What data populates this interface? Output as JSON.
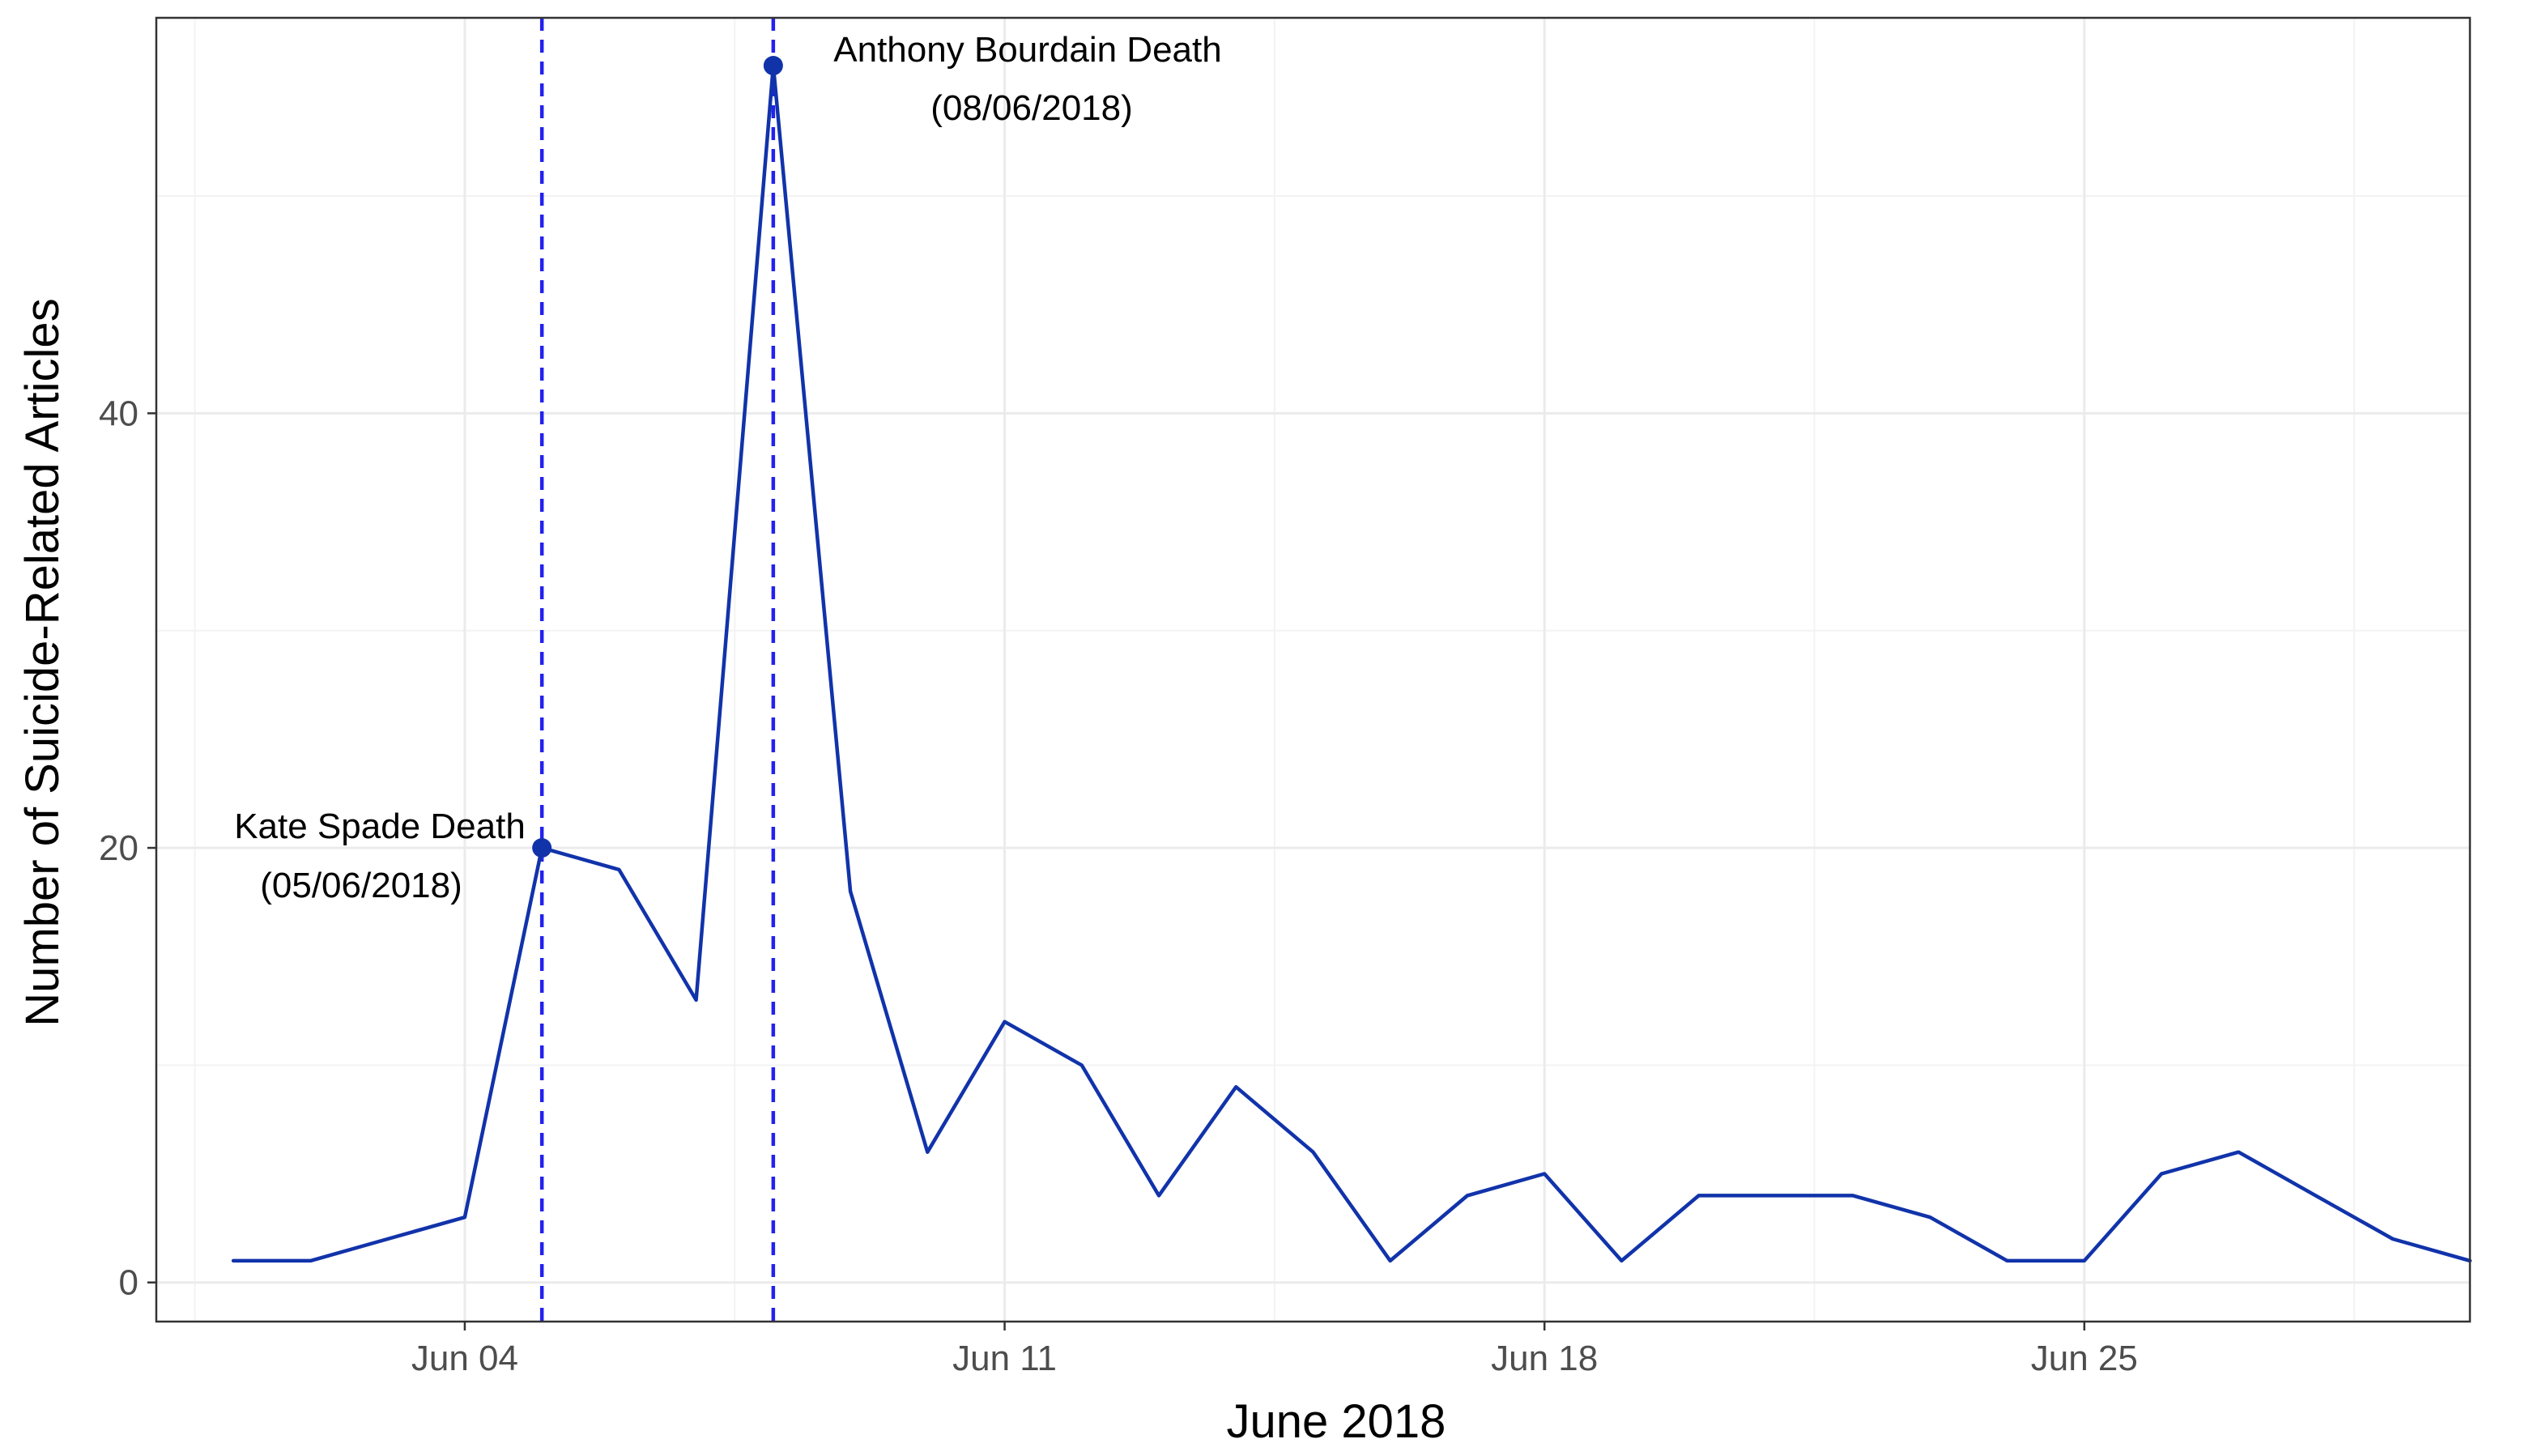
{
  "chart_data": {
    "type": "line",
    "title": "",
    "xlabel": "June 2018",
    "ylabel": "Number of Suicide-Related Articles",
    "xlim": [
      "2018-05-31",
      "2018-06-30"
    ],
    "ylim": [
      -1.8,
      58.2
    ],
    "grid": true,
    "x_ticks": [
      {
        "date": "2018-06-04",
        "label": "Jun 04"
      },
      {
        "date": "2018-06-11",
        "label": "Jun 11"
      },
      {
        "date": "2018-06-18",
        "label": "Jun 18"
      },
      {
        "date": "2018-06-25",
        "label": "Jun 25"
      }
    ],
    "y_ticks": [
      {
        "value": 0,
        "label": "0"
      },
      {
        "value": 20,
        "label": "20"
      },
      {
        "value": 40,
        "label": "40"
      }
    ],
    "series": [
      {
        "color": "#1133aa",
        "x": [
          "2018-06-01",
          "2018-06-02",
          "2018-06-03",
          "2018-06-04",
          "2018-06-05",
          "2018-06-06",
          "2018-06-07",
          "2018-06-08",
          "2018-06-09",
          "2018-06-10",
          "2018-06-11",
          "2018-06-12",
          "2018-06-13",
          "2018-06-14",
          "2018-06-15",
          "2018-06-16",
          "2018-06-17",
          "2018-06-18",
          "2018-06-19",
          "2018-06-20",
          "2018-06-21",
          "2018-06-22",
          "2018-06-23",
          "2018-06-24",
          "2018-06-25",
          "2018-06-26",
          "2018-06-27",
          "2018-06-28",
          "2018-06-29",
          "2018-06-30"
        ],
        "values": [
          1,
          1,
          2,
          3,
          20,
          19,
          13,
          56,
          18,
          6,
          12,
          10,
          4,
          9,
          6,
          1,
          4,
          5,
          1,
          4,
          4,
          4,
          3,
          1,
          1,
          5,
          6,
          4,
          2,
          1
        ]
      }
    ],
    "events": [
      {
        "date": "2018-06-05",
        "value": 20,
        "line_color": "#2222ee",
        "point_color": "#1133aa",
        "label_line1": "Kate Spade Death",
        "label_line2": "(05/06/2018)"
      },
      {
        "date": "2018-06-08",
        "value": 56,
        "line_color": "#2222ee",
        "point_color": "#1133aa",
        "label_line1": "Anthony Bourdain Death",
        "label_line2": "(08/06/2018)"
      }
    ]
  }
}
